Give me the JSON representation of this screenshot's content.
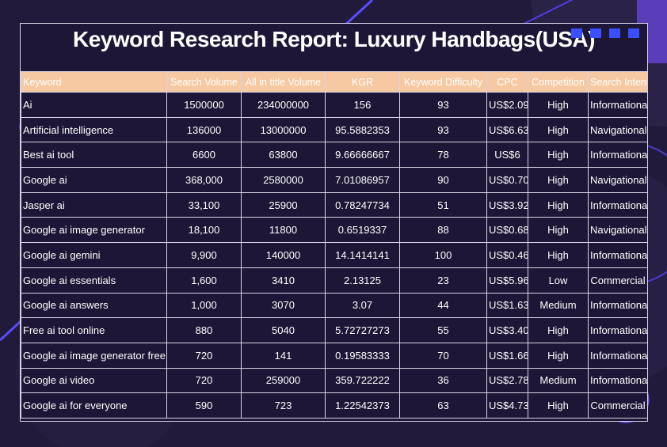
{
  "report": {
    "title": "Keyword Research Report: Luxury Handbags(USA)",
    "columns": [
      "Keyword",
      "Search Volume",
      "All in title Volume",
      "KGR",
      "Keyword Difficulty",
      "CPC",
      "Competition",
      "Search Intent"
    ],
    "rows": [
      [
        "Ai",
        "1500000",
        "234000000",
        "156",
        "93",
        "US$2.09",
        "High",
        "Informational"
      ],
      [
        "Artificial intelligence",
        "136000",
        "13000000",
        "95.5882353",
        "93",
        "US$6.63",
        "High",
        "Navigational"
      ],
      [
        "Best ai tool",
        "6600",
        "63800",
        "9.66666667",
        "78",
        "US$6",
        "High",
        "Informational"
      ],
      [
        "Google ai",
        "368,000",
        "2580000",
        "7.01086957",
        "90",
        "US$0.70",
        "High",
        "Navigational"
      ],
      [
        "Jasper ai",
        "33,100",
        "25900",
        "0.78247734",
        "51",
        "US$3.92",
        "High",
        "Informational"
      ],
      [
        "Google ai image generator",
        "18,100",
        "11800",
        "0.6519337",
        "88",
        "US$0.68",
        "High",
        "Navigational"
      ],
      [
        "Google ai gemini",
        "9,900",
        "140000",
        "14.1414141",
        "100",
        "US$0.46",
        "High",
        "Informational"
      ],
      [
        "Google ai essentials",
        "1,600",
        "3410",
        "2.13125",
        "23",
        "US$5.96",
        "Low",
        "Commercial"
      ],
      [
        "Google ai answers",
        "1,000",
        "3070",
        "3.07",
        "44",
        "US$1.63",
        "Medium",
        "Informational"
      ],
      [
        "Free ai tool online",
        "880",
        "5040",
        "5.72727273",
        "55",
        "US$3.40",
        "High",
        "Informational"
      ],
      [
        "Google ai image generator free",
        "720",
        "141",
        "0.19583333",
        "70",
        "US$1.66",
        "High",
        "Informational"
      ],
      [
        "Google ai video",
        "720",
        "259000",
        "359.722222",
        "36",
        "US$2.78",
        "Medium",
        "Informational"
      ],
      [
        "Google ai for everyone",
        "590",
        "723",
        "1.22542373",
        "63",
        "US$4.73",
        "High",
        "Commercial"
      ]
    ]
  },
  "colors": {
    "background": "#221a3a",
    "header_fill": "#f6c9a3",
    "accent_blue": "#3a4fff",
    "accent_purple": "#5a3db8"
  }
}
